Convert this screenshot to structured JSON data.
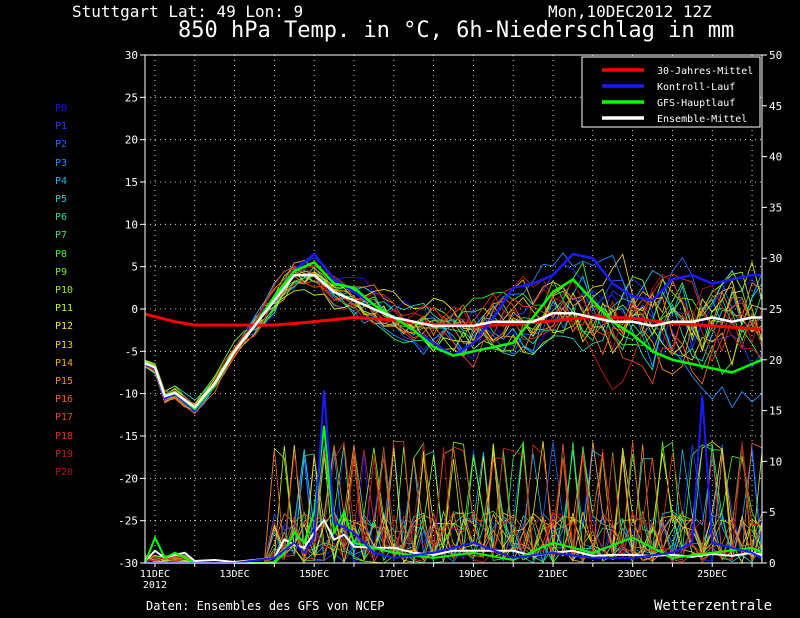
{
  "header": {
    "station": "Stuttgart   Lat: 49 Lon: 9",
    "run_time": "Mon,10DEC2012 12Z",
    "title": "850 hPa Temp. in °C, 6h-Niederschlag in mm"
  },
  "footer": {
    "source": "Daten: Ensembles des GFS von NCEP",
    "credit": "Wetterzentrale"
  },
  "colors": {
    "background": "#000000",
    "climatology": "#ff0000",
    "control": "#1a1aff",
    "main_run": "#00ff00",
    "ensemble_mean": "#ffffff",
    "grid": "#ffffff"
  },
  "members": [
    {
      "label": "P0",
      "color": "#1515ff"
    },
    {
      "label": "P1",
      "color": "#1a3cff"
    },
    {
      "label": "P2",
      "color": "#1f64ff"
    },
    {
      "label": "P3",
      "color": "#1e8cff"
    },
    {
      "label": "P4",
      "color": "#1eb4f0"
    },
    {
      "label": "P5",
      "color": "#1ed2c8"
    },
    {
      "label": "P6",
      "color": "#22dc96"
    },
    {
      "label": "P7",
      "color": "#2ee664"
    },
    {
      "label": "P8",
      "color": "#3cf03c"
    },
    {
      "label": "P9",
      "color": "#64f01e"
    },
    {
      "label": "P10",
      "color": "#96f01e"
    },
    {
      "label": "P11",
      "color": "#c8f01e"
    },
    {
      "label": "P12",
      "color": "#f0e61e"
    },
    {
      "label": "P13",
      "color": "#f0c81e"
    },
    {
      "label": "P14",
      "color": "#f0aa1e"
    },
    {
      "label": "P15",
      "color": "#f08c1e"
    },
    {
      "label": "P16",
      "color": "#f0641e"
    },
    {
      "label": "P17",
      "color": "#e6461e"
    },
    {
      "label": "P18",
      "color": "#dc3219"
    },
    {
      "label": "P19",
      "color": "#c81e14"
    },
    {
      "label": "P20",
      "color": "#b41414"
    }
  ],
  "chart_data": {
    "type": "line",
    "title": "850 hPa Temp. in °C, 6h-Niederschlag in mm",
    "x_unit": "date",
    "x_ticks": [
      "11DEC 2012",
      "13DEC",
      "15DEC",
      "17DEC",
      "19DEC",
      "21DEC",
      "23DEC",
      "25DEC"
    ],
    "x_tick_days": [
      11,
      13,
      15,
      17,
      19,
      21,
      23,
      25
    ],
    "xlim_days": [
      10.75,
      26.25
    ],
    "y_left": {
      "label": "850 hPa Temp. (°C)",
      "lim": [
        -30,
        30
      ],
      "ticks": [
        -30,
        -25,
        -20,
        -15,
        -10,
        -5,
        0,
        5,
        10,
        15,
        20,
        25,
        30
      ]
    },
    "y_right": {
      "label": "6h-Niederschlag (mm)",
      "lim": [
        0,
        50
      ],
      "ticks": [
        0,
        5,
        10,
        15,
        20,
        25,
        30,
        35,
        40,
        45,
        50
      ]
    },
    "grid": true,
    "legend": {
      "placement": "top-right",
      "entries": [
        {
          "name": "30-Jahres-Mittel",
          "color": "#ff0000"
        },
        {
          "name": "Kontroll-Lauf",
          "color": "#1a1aff"
        },
        {
          "name": "GFS-Hauptlauf",
          "color": "#00ff00"
        },
        {
          "name": "Ensemble-Mittel",
          "color": "#ffffff"
        }
      ]
    },
    "temperature_series": [
      {
        "name": "30-Jahres-Mittel",
        "x": [
          10.75,
          11.5,
          12.0,
          13.0,
          14.0,
          15.0,
          16.0,
          17.0,
          18.0,
          19.0,
          20.0,
          21.0,
          22.0,
          23.0,
          24.0,
          25.0,
          26.25
        ],
        "y": [
          -0.6,
          -1.5,
          -1.9,
          -1.9,
          -1.9,
          -1.5,
          -1.0,
          -1.3,
          -1.8,
          -2.0,
          -1.8,
          -1.4,
          -0.9,
          -1.1,
          -1.7,
          -2.0,
          -2.4
        ]
      },
      {
        "name": "Kontroll-Lauf",
        "x": [
          10.75,
          11.0,
          11.25,
          11.5,
          12.0,
          12.5,
          13.0,
          13.5,
          14.0,
          14.5,
          15.0,
          15.5,
          16.0,
          16.5,
          17.0,
          17.5,
          18.0,
          18.5,
          19.0,
          19.5,
          20.0,
          20.5,
          21.0,
          21.5,
          22.0,
          22.5,
          23.0,
          23.5,
          24.0,
          24.5,
          25.0,
          25.5,
          26.0,
          26.25
        ],
        "y": [
          -6.5,
          -7.0,
          -10.5,
          -10.0,
          -12.0,
          -9.0,
          -5.0,
          -2.0,
          1.0,
          4.5,
          6.5,
          3.5,
          2.0,
          0.5,
          -1.0,
          -2.5,
          -4.0,
          -5.5,
          -4.0,
          -1.0,
          2.5,
          3.0,
          4.0,
          6.5,
          6.0,
          3.0,
          1.5,
          1.0,
          3.5,
          4.0,
          3.0,
          3.5,
          4.0,
          4.0
        ]
      },
      {
        "name": "GFS-Hauptlauf",
        "x": [
          10.75,
          11.0,
          11.25,
          11.5,
          12.0,
          12.5,
          13.0,
          13.5,
          14.0,
          14.5,
          15.0,
          15.5,
          16.0,
          16.5,
          17.0,
          17.5,
          18.0,
          18.5,
          19.0,
          19.5,
          20.0,
          20.5,
          21.0,
          21.5,
          22.0,
          22.5,
          23.0,
          23.5,
          24.0,
          24.5,
          25.0,
          25.5,
          26.0,
          26.25
        ],
        "y": [
          -6.3,
          -6.8,
          -10.2,
          -9.8,
          -11.8,
          -9.0,
          -5.0,
          -2.0,
          1.5,
          4.5,
          5.5,
          3.0,
          2.5,
          0.5,
          -1.0,
          -2.5,
          -4.5,
          -5.5,
          -5.0,
          -4.5,
          -4.0,
          -1.0,
          2.0,
          3.5,
          1.0,
          -1.5,
          -3.0,
          -5.0,
          -6.0,
          -6.5,
          -7.0,
          -7.5,
          -6.5,
          -6.0
        ]
      },
      {
        "name": "Ensemble-Mittel",
        "x": [
          10.75,
          11.0,
          11.25,
          11.5,
          12.0,
          12.5,
          13.0,
          13.5,
          14.0,
          14.5,
          15.0,
          15.5,
          16.0,
          16.5,
          17.0,
          17.5,
          18.0,
          18.5,
          19.0,
          19.5,
          20.0,
          20.5,
          21.0,
          21.5,
          22.0,
          22.5,
          23.0,
          23.5,
          24.0,
          24.5,
          25.0,
          25.5,
          26.0,
          26.25
        ],
        "y": [
          -6.4,
          -6.9,
          -10.3,
          -9.9,
          -11.6,
          -8.8,
          -5.0,
          -2.0,
          1.0,
          4.0,
          4.0,
          2.0,
          1.0,
          0.0,
          -1.0,
          -1.5,
          -2.0,
          -2.0,
          -2.0,
          -1.5,
          -1.5,
          -1.5,
          -0.5,
          -0.5,
          -1.0,
          -1.5,
          -1.5,
          -2.0,
          -1.5,
          -1.5,
          -1.0,
          -1.5,
          -1.0,
          -1.0
        ]
      }
    ],
    "precipitation_series": [
      {
        "name": "Ensemble-Mittel",
        "x": [
          10.75,
          11.0,
          11.25,
          11.5,
          11.75,
          12.0,
          12.5,
          13.0,
          13.5,
          14.0,
          14.25,
          14.5,
          14.75,
          15.0,
          15.25,
          15.5,
          15.75,
          16.0,
          16.5,
          17.0,
          17.5,
          18.0,
          18.5,
          19.0,
          19.5,
          20.0,
          20.5,
          21.0,
          21.5,
          22.0,
          22.5,
          23.0,
          23.5,
          24.0,
          24.5,
          25.0,
          25.5,
          26.0,
          26.25
        ],
        "y": [
          0.2,
          1.2,
          0.5,
          0.8,
          1.0,
          0.2,
          0.3,
          0.1,
          0.3,
          0.5,
          2.3,
          1.8,
          1.5,
          3.0,
          4.2,
          2.3,
          2.8,
          1.6,
          1.5,
          1.5,
          1.0,
          0.8,
          1.2,
          1.2,
          1.2,
          1.2,
          0.7,
          1.0,
          1.2,
          0.7,
          0.8,
          0.8,
          0.7,
          0.8,
          0.6,
          0.9,
          0.7,
          1.0,
          0.8
        ]
      },
      {
        "name": "GFS-Hauptlauf",
        "x": [
          10.75,
          11.0,
          11.25,
          11.5,
          11.75,
          12.0,
          13.0,
          14.0,
          14.25,
          14.5,
          14.75,
          15.0,
          15.25,
          15.5,
          15.75,
          16.0,
          16.5,
          17.0,
          18.0,
          19.0,
          20.0,
          21.0,
          22.0,
          23.0,
          24.0,
          25.0,
          26.0,
          26.25
        ],
        "y": [
          0.0,
          2.5,
          0.5,
          1.0,
          0.5,
          0.0,
          0.0,
          0.0,
          1.0,
          3.0,
          2.0,
          5.0,
          13.5,
          3.0,
          5.0,
          2.0,
          1.5,
          1.0,
          0.5,
          1.0,
          0.3,
          2.0,
          1.0,
          2.5,
          0.5,
          1.0,
          1.5,
          1.0
        ]
      },
      {
        "name": "Kontroll-Lauf",
        "x": [
          10.75,
          13.0,
          14.0,
          14.5,
          14.75,
          15.0,
          15.25,
          15.5,
          16.0,
          16.5,
          17.0,
          18.0,
          19.0,
          20.0,
          21.0,
          22.0,
          23.0,
          24.0,
          24.5,
          24.75,
          25.0,
          26.0,
          26.25
        ],
        "y": [
          0.0,
          0.0,
          0.5,
          2.0,
          1.0,
          2.5,
          17.0,
          4.0,
          3.0,
          1.0,
          0.5,
          1.0,
          2.0,
          0.5,
          1.0,
          0.5,
          0.5,
          1.0,
          2.0,
          16.5,
          2.0,
          1.0,
          0.5
        ]
      }
    ]
  }
}
